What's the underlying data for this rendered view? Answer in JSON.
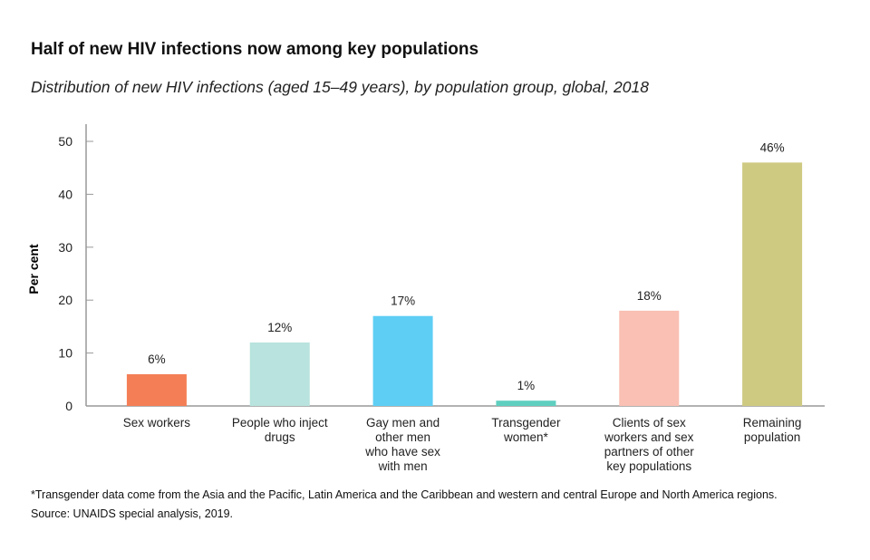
{
  "chart_data": {
    "type": "bar",
    "title": "Half of new HIV infections now among key populations",
    "subtitle": "Distribution of new HIV infections (aged 15–49 years), by population group, global, 2018",
    "xlabel": "",
    "ylabel": "Per cent",
    "ylim": [
      0,
      50
    ],
    "yticks": [
      0,
      10,
      20,
      30,
      40,
      50
    ],
    "grid": false,
    "categories": [
      [
        "Sex workers"
      ],
      [
        "People who inject",
        "drugs"
      ],
      [
        "Gay men and",
        "other men",
        "who have sex",
        "with men"
      ],
      [
        "Transgender",
        "women*"
      ],
      [
        "Clients of sex",
        "workers and sex",
        "partners of other",
        "key populations"
      ],
      [
        "Remaining",
        "population"
      ]
    ],
    "values": [
      6,
      12,
      17,
      1,
      18,
      46
    ],
    "data_labels": [
      "6%",
      "12%",
      "17%",
      "1%",
      "18%",
      "46%"
    ],
    "colors": [
      "#f47f57",
      "#b8e3de",
      "#5ecef5",
      "#5fcfc0",
      "#f9c0b3",
      "#cfca82"
    ]
  },
  "footnotes": [
    "*Transgender data come from the Asia and the Pacific, Latin America and the Caribbean and western and central Europe and North America regions.",
    "Source: UNAIDS special analysis, 2019."
  ]
}
